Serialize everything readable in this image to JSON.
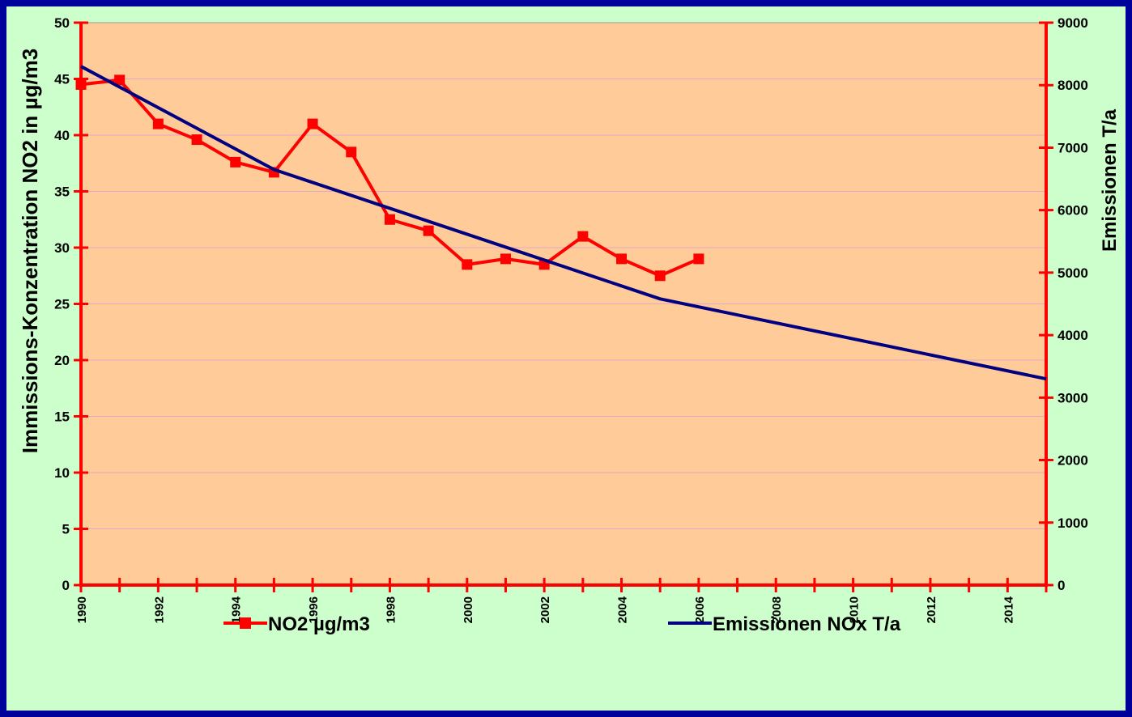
{
  "chart_data": {
    "type": "line",
    "title": "",
    "xlabel": "",
    "ylabel_left": "Immissions-Konzentration NO2 in µg/m3",
    "ylabel_right": "Emissionen T/a",
    "xlim": [
      1990,
      2015
    ],
    "ylim_left": [
      0,
      50
    ],
    "ylim_right": [
      0,
      9000
    ],
    "x_ticks": [
      1990,
      1992,
      1994,
      1996,
      1998,
      2000,
      2002,
      2004,
      2006,
      2008,
      2010,
      2012,
      2014
    ],
    "y_ticks_left": [
      0,
      5,
      10,
      15,
      20,
      25,
      30,
      35,
      40,
      45,
      50
    ],
    "y_ticks_right": [
      0,
      1000,
      2000,
      3000,
      4000,
      5000,
      6000,
      7000,
      8000,
      9000
    ],
    "grid": "horizontal",
    "legend_position": "bottom",
    "series": [
      {
        "name": "NO2 µg/m3",
        "axis": "left",
        "color": "#ff0000",
        "marker": "square",
        "x": [
          1990,
          1991,
          1992,
          1993,
          1994,
          1995,
          1996,
          1997,
          1998,
          1999,
          2000,
          2001,
          2002,
          2003,
          2004,
          2005,
          2006
        ],
        "values": [
          44.5,
          44.9,
          41.0,
          39.6,
          37.6,
          36.7,
          41.0,
          38.5,
          32.5,
          31.5,
          28.5,
          29.0,
          28.5,
          31.0,
          29.0,
          27.5,
          29.0
        ]
      },
      {
        "name": "Emissionen NOx T/a",
        "axis": "right",
        "color": "#000080",
        "marker": "none",
        "x": [
          1990,
          1995,
          2005,
          2015
        ],
        "values": [
          8300,
          6650,
          4580,
          3300
        ]
      }
    ]
  },
  "colors": {
    "plot_background": "#ffcc99",
    "chart_background": "#ccffcc",
    "border": "#00009a",
    "axis": "#ff0000",
    "gridline": "#e0a8c8"
  }
}
